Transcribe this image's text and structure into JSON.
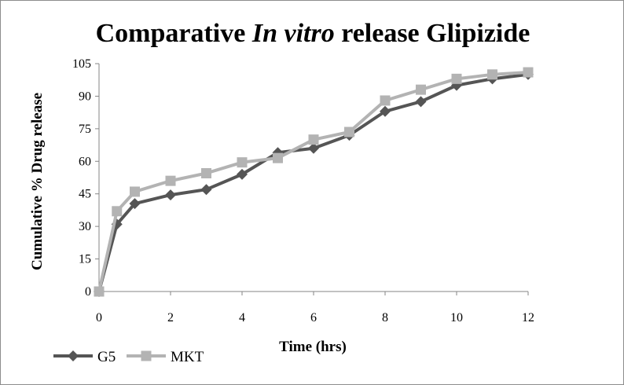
{
  "chart_data": {
    "type": "line",
    "title_parts": {
      "before": "Comparative ",
      "italic": "In vitro",
      "after": " release Glipizide"
    },
    "xlabel": "Time (hrs)",
    "ylabel": "Cumulative % Drug release",
    "xlim": [
      0,
      12
    ],
    "ylim": [
      0,
      105
    ],
    "xticks": [
      0,
      2,
      4,
      6,
      8,
      10,
      12
    ],
    "yticks": [
      0,
      15,
      30,
      45,
      60,
      75,
      90,
      105
    ],
    "grid": false,
    "legend_position": "bottom-left",
    "series": [
      {
        "name": "G5",
        "color": "#555555",
        "marker": "diamond",
        "x": [
          0,
          0.5,
          1,
          2,
          3,
          4,
          5,
          6,
          7,
          8,
          9,
          10,
          11,
          12
        ],
        "y": [
          0,
          31,
          40.5,
          44.5,
          47,
          54,
          64,
          66,
          72,
          83,
          87.5,
          95,
          98,
          100
        ]
      },
      {
        "name": "MKT",
        "color": "#b3b3b3",
        "marker": "square",
        "x": [
          0,
          0.5,
          1,
          2,
          3,
          4,
          5,
          6,
          7,
          8,
          9,
          10,
          11,
          12
        ],
        "y": [
          0,
          37,
          46,
          51,
          54.5,
          59.5,
          61.5,
          70,
          73.5,
          88,
          93,
          98,
          100,
          101
        ]
      }
    ]
  }
}
